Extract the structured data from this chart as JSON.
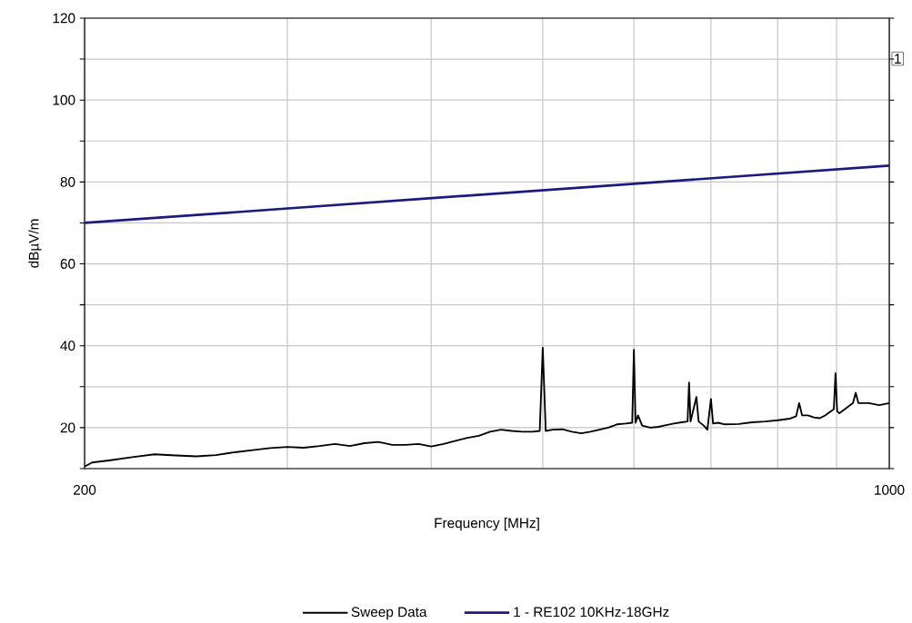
{
  "chart_data": {
    "type": "line",
    "xlabel": "Frequency [MHz]",
    "ylabel": "dBµV/m",
    "log": "x",
    "grid": true,
    "legend": "bottom",
    "marker": "none",
    "line_style": "solid",
    "xlim": [
      200,
      1000
    ],
    "ylim": [
      10,
      120
    ],
    "xticks": [
      200,
      {
        "value": 300,
        "label": null
      },
      {
        "value": 400,
        "label": null
      },
      {
        "value": 500,
        "label": null
      },
      {
        "value": 600,
        "label": null
      },
      {
        "value": 700,
        "label": null
      },
      {
        "value": 800,
        "label": null
      },
      {
        "value": 900,
        "label": null
      },
      1000
    ],
    "yticks": [
      {
        "value": 10,
        "label": null
      },
      20,
      {
        "value": 30,
        "label": null
      },
      40,
      {
        "value": 50,
        "label": null
      },
      60,
      {
        "value": 70,
        "label": null
      },
      80,
      {
        "value": 90,
        "label": null
      },
      100,
      {
        "value": 110,
        "label": null
      },
      120
    ],
    "annotations": [
      "1"
    ],
    "series": [
      {
        "name": "Sweep Data",
        "color": "#000000",
        "x": [
          200,
          203,
          210,
          220,
          230,
          240,
          250,
          260,
          270,
          280,
          290,
          300,
          310,
          320,
          330,
          340,
          350,
          360,
          370,
          380,
          390,
          400,
          410,
          420,
          430,
          440,
          450,
          460,
          470,
          480,
          490,
          497,
          500,
          503,
          510,
          520,
          530,
          540,
          550,
          560,
          570,
          580,
          590,
          598,
          600,
          602,
          605,
          610,
          620,
          630,
          640,
          650,
          660,
          668,
          670,
          672,
          680,
          683,
          690,
          695,
          700,
          703,
          710,
          720,
          740,
          760,
          780,
          800,
          820,
          830,
          835,
          840,
          850,
          860,
          870,
          880,
          890,
          895,
          898,
          901,
          905,
          920,
          930,
          935,
          940,
          960,
          980,
          1000
        ],
        "values": [
          10.5,
          11.5,
          12,
          12.8,
          13.5,
          13.2,
          13,
          13.3,
          14,
          14.5,
          15,
          15.3,
          15.1,
          15.5,
          16,
          15.5,
          16.2,
          16.5,
          15.8,
          15.8,
          16,
          15.4,
          16,
          16.8,
          17.5,
          18,
          19,
          19.5,
          19.2,
          19,
          19,
          19.2,
          39.5,
          19.2,
          19.5,
          19.6,
          19,
          18.6,
          19,
          19.5,
          20,
          20.8,
          21,
          21.2,
          39,
          21.2,
          23,
          20.5,
          20,
          20.2,
          20.6,
          21,
          21.3,
          21.5,
          31,
          21.5,
          27.5,
          21.5,
          20.5,
          19.5,
          27,
          21,
          21.2,
          20.8,
          20.9,
          21.3,
          21.5,
          21.8,
          22.2,
          22.8,
          26,
          23,
          23,
          22.5,
          22.3,
          23,
          24,
          24.5,
          33.3,
          24,
          23.5,
          25,
          26,
          28.5,
          26,
          26,
          25.5,
          26
        ]
      },
      {
        "name": "1 - RE102 10KHz-18GHz",
        "color": "#1a1a80",
        "x": [
          200,
          1000
        ],
        "values": [
          70,
          84
        ]
      }
    ]
  }
}
